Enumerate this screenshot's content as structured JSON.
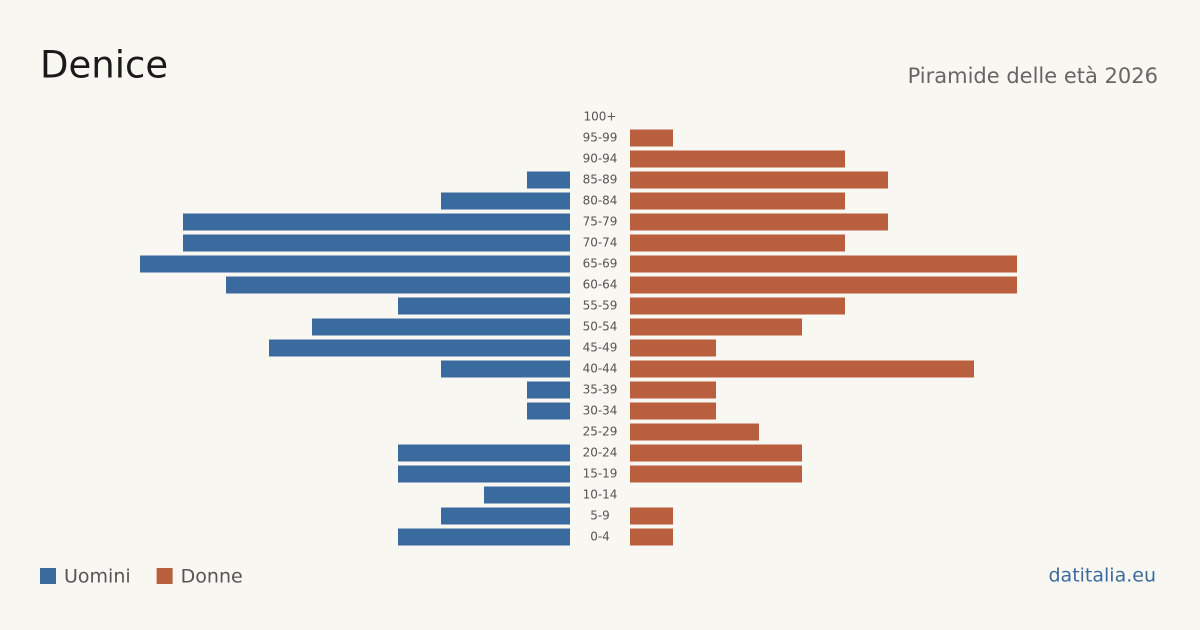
{
  "chart_data": {
    "type": "pyramid",
    "title": "Denice",
    "subtitle": "Piramide delle età 2026",
    "categories": [
      "100+",
      "95-99",
      "90-94",
      "85-89",
      "80-84",
      "75-79",
      "70-74",
      "65-69",
      "60-64",
      "55-59",
      "50-54",
      "45-49",
      "40-44",
      "35-39",
      "30-34",
      "25-29",
      "20-24",
      "15-19",
      "10-14",
      "5-9",
      "0-4"
    ],
    "series": [
      {
        "name": "Uomini",
        "color": "#3a6a9e",
        "values": [
          0,
          0,
          0,
          1,
          3,
          9,
          9,
          10,
          8,
          4,
          6,
          7,
          3,
          1,
          1,
          0,
          4,
          4,
          2,
          3,
          4
        ]
      },
      {
        "name": "Donne",
        "color": "#b95f3d",
        "values": [
          0,
          1,
          5,
          6,
          5,
          6,
          5,
          9,
          9,
          5,
          4,
          2,
          8,
          2,
          2,
          3,
          4,
          4,
          0,
          1,
          1
        ]
      }
    ],
    "xlim": [
      0,
      10
    ],
    "source": "datitalia.eu"
  }
}
